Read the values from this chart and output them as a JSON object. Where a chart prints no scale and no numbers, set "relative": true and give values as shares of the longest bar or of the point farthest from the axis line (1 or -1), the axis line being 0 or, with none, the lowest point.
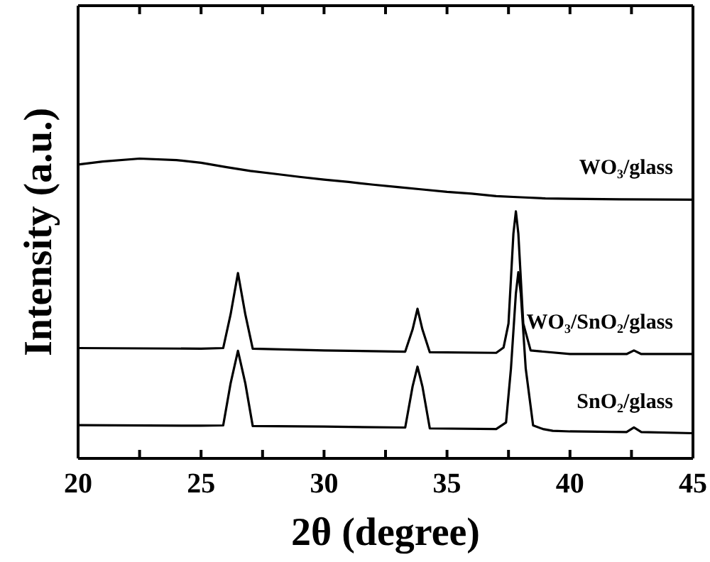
{
  "chart_data": {
    "type": "line",
    "relative": true,
    "xlabel": "2θ (degree)",
    "ylabel": "Intensity (a.u.)",
    "legend": false,
    "marker": "none",
    "line_style": "solid",
    "xlim": [
      20,
      45
    ],
    "xticks": [
      20,
      {
        "value": 22.5,
        "label": null
      },
      25,
      {
        "value": 27.5,
        "label": null
      },
      30,
      {
        "value": 32.5,
        "label": null
      },
      35,
      {
        "value": 37.5,
        "label": null
      },
      40,
      {
        "value": 42.5,
        "label": null
      },
      45
    ],
    "series": [
      {
        "name": "WO₃/glass",
        "color": "#000000",
        "x": [
          20,
          21,
          22.5,
          24,
          25,
          26,
          27,
          28,
          29,
          30,
          31,
          32,
          33,
          34,
          35,
          36,
          37,
          38,
          39,
          40,
          42,
          45
        ],
        "values": [
          0.98,
          0.99,
          1.0,
          0.995,
          0.986,
          0.972,
          0.959,
          0.949,
          0.939,
          0.93,
          0.922,
          0.913,
          0.905,
          0.897,
          0.889,
          0.883,
          0.875,
          0.871,
          0.867,
          0.866,
          0.864,
          0.863
        ]
      },
      {
        "name": "WO₃/SnO₂/glass",
        "color": "#000000",
        "x": [
          20,
          25,
          25.9,
          26.2,
          26.5,
          26.8,
          27.1,
          30,
          33.3,
          33.6,
          33.8,
          34.0,
          34.3,
          37,
          37.3,
          37.5,
          37.7,
          37.8,
          37.9,
          38.1,
          38.4,
          40,
          42.3,
          42.6,
          42.9,
          45
        ],
        "values": [
          0.368,
          0.366,
          0.368,
          0.48,
          0.618,
          0.48,
          0.366,
          0.36,
          0.356,
          0.43,
          0.499,
          0.43,
          0.354,
          0.352,
          0.37,
          0.45,
          0.75,
          0.824,
          0.75,
          0.45,
          0.36,
          0.348,
          0.348,
          0.36,
          0.348,
          0.348
        ]
      },
      {
        "name": "SnO₂/glass",
        "color": "#000000",
        "x": [
          20,
          25,
          25.9,
          26.2,
          26.5,
          26.8,
          27.1,
          30,
          33.3,
          33.6,
          33.8,
          34.0,
          34.3,
          37,
          37.4,
          37.6,
          37.8,
          37.9,
          38.0,
          38.2,
          38.5,
          38.9,
          39.3,
          40,
          42.3,
          42.6,
          42.9,
          45
        ],
        "values": [
          0.111,
          0.109,
          0.11,
          0.25,
          0.359,
          0.25,
          0.108,
          0.106,
          0.103,
          0.24,
          0.306,
          0.24,
          0.1,
          0.098,
          0.12,
          0.3,
          0.55,
          0.621,
          0.55,
          0.3,
          0.11,
          0.098,
          0.092,
          0.09,
          0.088,
          0.103,
          0.088,
          0.084
        ]
      }
    ]
  }
}
